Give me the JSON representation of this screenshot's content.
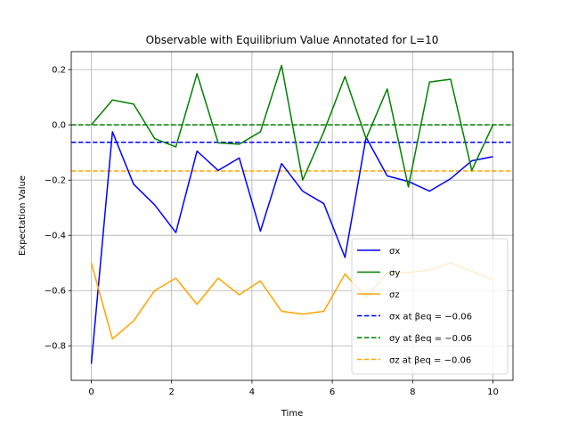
{
  "chart_data": {
    "type": "line",
    "title": "Observable with Equilibrium Value Annotated for L=10",
    "xlabel": "Time",
    "ylabel": "Expectation Value",
    "xlim": [
      -0.5,
      10.5
    ],
    "ylim": [
      -0.925,
      0.265
    ],
    "grid": true,
    "legend_position": "bottom-right",
    "x_ticks": [
      0,
      2,
      4,
      6,
      8,
      10
    ],
    "y_ticks": [
      -0.8,
      -0.6,
      -0.4,
      -0.2,
      0.0,
      0.2
    ],
    "x_tick_labels": [
      "0",
      "2",
      "4",
      "6",
      "8",
      "10"
    ],
    "y_tick_labels": [
      "−0.8",
      "−0.6",
      "−0.4",
      "−0.2",
      "0.0",
      "0.2"
    ],
    "x": [
      0,
      0.526,
      1.053,
      1.579,
      2.105,
      2.632,
      3.158,
      3.684,
      4.211,
      4.737,
      5.263,
      5.789,
      6.316,
      6.842,
      7.368,
      7.895,
      8.421,
      8.947,
      9.474,
      10.0
    ],
    "series": [
      {
        "name": "σx",
        "color": "#0000ff",
        "style": "solid",
        "values": [
          -0.865,
          -0.025,
          -0.215,
          -0.29,
          -0.39,
          -0.095,
          -0.165,
          -0.12,
          -0.385,
          -0.14,
          -0.24,
          -0.285,
          -0.48,
          -0.045,
          -0.185,
          -0.205,
          -0.24,
          -0.195,
          -0.13,
          -0.115
        ]
      },
      {
        "name": "σy",
        "color": "#008000",
        "style": "solid",
        "values": [
          0.0,
          0.09,
          0.075,
          -0.05,
          -0.08,
          0.185,
          -0.065,
          -0.07,
          -0.025,
          0.215,
          -0.2,
          -0.025,
          0.175,
          -0.05,
          0.13,
          -0.225,
          0.155,
          0.165,
          -0.165,
          0.0
        ]
      },
      {
        "name": "σz",
        "color": "#ffa500",
        "style": "solid",
        "values": [
          -0.5,
          -0.775,
          -0.71,
          -0.6,
          -0.555,
          -0.65,
          -0.555,
          -0.615,
          -0.565,
          -0.675,
          -0.685,
          -0.675,
          -0.54,
          -0.625,
          -0.535,
          -0.535,
          -0.525,
          -0.5,
          -0.53,
          -0.56
        ]
      },
      {
        "name": "σx at βeq = −0.06",
        "color": "#0000ff",
        "style": "dashed",
        "value": -0.063
      },
      {
        "name": "σy at βeq = −0.06",
        "color": "#008000",
        "style": "dashed",
        "value": 0.0
      },
      {
        "name": "σz at βeq = −0.06",
        "color": "#ffa500",
        "style": "dashed",
        "value": -0.167
      }
    ]
  }
}
